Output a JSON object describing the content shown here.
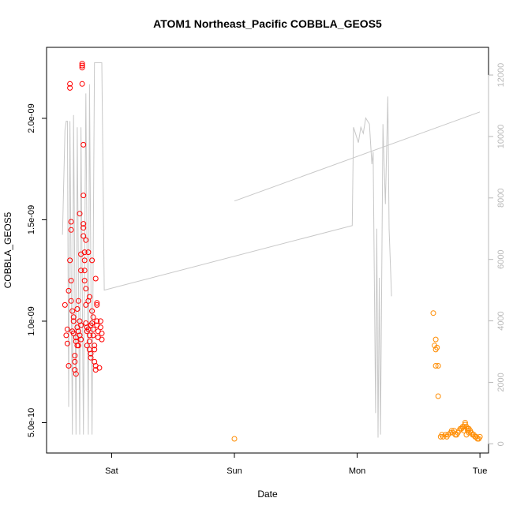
{
  "chart_data": {
    "type": "scatter",
    "title": "ATOM1 Northeast_Pacific COBBLA_GEOS5",
    "xlabel": "Date",
    "ylabel": "COBBLA_GEOS5",
    "x_ticks": [
      "Sat",
      "Sun",
      "Mon",
      "Tue"
    ],
    "xlim_days": [
      -0.53,
      3.07
    ],
    "y_ticks": [
      {
        "value": 5e-10,
        "label": "5.0e-10"
      },
      {
        "value": 1e-09,
        "label": "1.0e-09"
      },
      {
        "value": 1.5e-09,
        "label": "1.5e-09"
      },
      {
        "value": 2e-09,
        "label": "2.0e-09"
      }
    ],
    "ylim": [
      3.5e-10,
      2.35e-09
    ],
    "y2_ticks": [
      0,
      2000,
      4000,
      6000,
      8000,
      10000,
      12000
    ],
    "y2lim": [
      -300,
      12900
    ],
    "grid": false,
    "series": [
      {
        "color": "#ff0000",
        "marker": "open-circle",
        "points": [
          [
            -0.38,
            1.08e-09
          ],
          [
            -0.37,
            9.3e-10
          ],
          [
            -0.36,
            8.9e-10
          ],
          [
            -0.36,
            9.6e-10
          ],
          [
            -0.35,
            1.15e-09
          ],
          [
            -0.35,
            7.8e-10
          ],
          [
            -0.34,
            1.3e-09
          ],
          [
            -0.34,
            2.17e-09
          ],
          [
            -0.34,
            2.15e-09
          ],
          [
            -0.33,
            1.2e-09
          ],
          [
            -0.33,
            1.49e-09
          ],
          [
            -0.33,
            1.45e-09
          ],
          [
            -0.32,
            1.05e-09
          ],
          [
            -0.32,
            9.5e-10
          ],
          [
            -0.31,
            1e-09
          ],
          [
            -0.31,
            9.4e-10
          ],
          [
            -0.3,
            8.3e-10
          ],
          [
            -0.3,
            8e-10
          ],
          [
            -0.3,
            7.6e-10
          ],
          [
            -0.29,
            7.4e-10
          ],
          [
            -0.29,
            9.2e-10
          ],
          [
            -0.28,
            1.06e-09
          ],
          [
            -0.28,
            9.7e-10
          ],
          [
            -0.27,
            9.5e-10
          ],
          [
            -0.27,
            1.1e-09
          ],
          [
            -0.26,
            1.53e-09
          ],
          [
            -0.26,
            9.3e-10
          ],
          [
            -0.25,
            9.1e-10
          ],
          [
            -0.25,
            1.33e-09
          ],
          [
            -0.25,
            1.25e-09
          ],
          [
            -0.24,
            2.27e-09
          ],
          [
            -0.24,
            2.26e-09
          ],
          [
            -0.24,
            2.25e-09
          ],
          [
            -0.24,
            2.17e-09
          ],
          [
            -0.23,
            1.87e-09
          ],
          [
            -0.23,
            1.62e-09
          ],
          [
            -0.23,
            1.48e-09
          ],
          [
            -0.23,
            1.46e-09
          ],
          [
            -0.23,
            1.42e-09
          ],
          [
            -0.22,
            1.34e-09
          ],
          [
            -0.22,
            1.3e-09
          ],
          [
            -0.22,
            1.2e-09
          ],
          [
            -0.21,
            1.16e-09
          ],
          [
            -0.21,
            1.08e-09
          ],
          [
            -0.21,
            9.9e-10
          ],
          [
            -0.2,
            9.7e-10
          ],
          [
            -0.2,
            9.5e-10
          ],
          [
            -0.2,
            8.8e-10
          ],
          [
            -0.19,
            1.34e-09
          ],
          [
            -0.19,
            1.1e-09
          ],
          [
            -0.18,
            9.3e-10
          ],
          [
            -0.18,
            9e-10
          ],
          [
            -0.18,
            8.6e-10
          ],
          [
            -0.17,
            8.4e-10
          ],
          [
            -0.17,
            8.2e-10
          ],
          [
            -0.16,
            1.05e-09
          ],
          [
            -0.16,
            9.9e-10
          ],
          [
            -0.15,
            9.6e-10
          ],
          [
            -0.15,
            9.3e-10
          ],
          [
            -0.14,
            8.8e-10
          ],
          [
            -0.14,
            8e-10
          ],
          [
            -0.13,
            1.21e-09
          ],
          [
            -0.13,
            7.8e-10
          ],
          [
            -0.13,
            7.6e-10
          ],
          [
            -0.12,
            1.09e-09
          ],
          [
            -0.12,
            1.08e-09
          ],
          [
            -0.12,
            9.8e-10
          ],
          [
            -0.11,
            9.5e-10
          ],
          [
            -0.11,
            9.2e-10
          ],
          [
            -0.1,
            7.7e-10
          ],
          [
            -0.09,
            1e-09
          ],
          [
            -0.09,
            9.7e-10
          ],
          [
            -0.08,
            9.4e-10
          ],
          [
            -0.08,
            9.1e-10
          ],
          [
            -0.33,
            1.1e-09
          ],
          [
            -0.31,
            1.02e-09
          ],
          [
            -0.27,
            8.8e-10
          ],
          [
            -0.26,
            1e-09
          ],
          [
            -0.22,
            1.25e-09
          ],
          [
            -0.21,
            1.4e-09
          ],
          [
            -0.19,
            9.6e-10
          ],
          [
            -0.17,
            9.8e-10
          ],
          [
            -0.15,
            1.02e-09
          ],
          [
            -0.14,
            8.6e-10
          ],
          [
            -0.12,
            1e-09
          ],
          [
            -0.29,
            9e-10
          ],
          [
            -0.28,
            8.8e-10
          ],
          [
            -0.25,
            9.8e-10
          ],
          [
            -0.18,
            1.12e-09
          ],
          [
            -0.16,
            1.3e-09
          ]
        ]
      },
      {
        "color": "#ff8c00",
        "marker": "open-circle",
        "points": [
          [
            1.0,
            4.2e-10
          ],
          [
            2.62,
            1.04e-09
          ],
          [
            2.63,
            8.8e-10
          ],
          [
            2.64,
            9.1e-10
          ],
          [
            2.64,
            8.6e-10
          ],
          [
            2.65,
            8.7e-10
          ],
          [
            2.64,
            7.8e-10
          ],
          [
            2.66,
            7.8e-10
          ],
          [
            2.66,
            6.3e-10
          ],
          [
            2.68,
            4.3e-10
          ],
          [
            2.69,
            4.4e-10
          ],
          [
            2.7,
            4.3e-10
          ],
          [
            2.72,
            4.4e-10
          ],
          [
            2.73,
            4.3e-10
          ],
          [
            2.74,
            4.4e-10
          ],
          [
            2.76,
            4.5e-10
          ],
          [
            2.77,
            4.6e-10
          ],
          [
            2.78,
            4.5e-10
          ],
          [
            2.79,
            4.6e-10
          ],
          [
            2.8,
            4.4e-10
          ],
          [
            2.81,
            4.4e-10
          ],
          [
            2.82,
            4.5e-10
          ],
          [
            2.83,
            4.6e-10
          ],
          [
            2.84,
            4.7e-10
          ],
          [
            2.85,
            4.7e-10
          ],
          [
            2.86,
            4.8e-10
          ],
          [
            2.87,
            4.8e-10
          ],
          [
            2.88,
            4.9e-10
          ],
          [
            2.88,
            5e-10
          ],
          [
            2.89,
            4.8e-10
          ],
          [
            2.9,
            4.7e-10
          ],
          [
            2.9,
            4.6e-10
          ],
          [
            2.91,
            4.5e-10
          ],
          [
            2.92,
            4.6e-10
          ],
          [
            2.93,
            4.5e-10
          ],
          [
            2.94,
            4.4e-10
          ],
          [
            2.95,
            4.4e-10
          ],
          [
            2.96,
            4.3e-10
          ],
          [
            2.97,
            4.3e-10
          ],
          [
            2.98,
            4.2e-10
          ],
          [
            2.99,
            4.2e-10
          ],
          [
            3.0,
            4.3e-10
          ],
          [
            2.87,
            4.6e-10
          ],
          [
            2.89,
            4.4e-10
          ],
          [
            2.91,
            4.7e-10
          ]
        ]
      },
      {
        "color": "#c8c8c8",
        "type": "line",
        "axis": "right",
        "points": [
          [
            -0.4,
            6800
          ],
          [
            -0.38,
            10200
          ],
          [
            -0.37,
            10500
          ],
          [
            -0.36,
            10500
          ],
          [
            -0.35,
            1200
          ],
          [
            -0.34,
            10500
          ],
          [
            -0.32,
            300
          ],
          [
            -0.31,
            10700
          ],
          [
            -0.29,
            300
          ],
          [
            -0.28,
            10300
          ],
          [
            -0.26,
            300
          ],
          [
            -0.25,
            10300
          ],
          [
            -0.23,
            300
          ],
          [
            -0.21,
            11400
          ],
          [
            -0.19,
            300
          ],
          [
            -0.18,
            11700
          ],
          [
            -0.16,
            300
          ],
          [
            -0.14,
            12400
          ],
          [
            -0.12,
            12400
          ],
          [
            -0.1,
            12400
          ],
          [
            -0.08,
            12400
          ],
          [
            -0.06,
            5000
          ],
          [
            1.96,
            7100
          ],
          [
            1.97,
            10300
          ],
          [
            2.01,
            9800
          ],
          [
            2.03,
            10300
          ],
          [
            2.05,
            10100
          ],
          [
            2.07,
            10600
          ],
          [
            2.1,
            10400
          ],
          [
            2.12,
            9100
          ],
          [
            2.13,
            9500
          ],
          [
            2.15,
            1000
          ],
          [
            2.16,
            7000
          ],
          [
            2.17,
            200
          ],
          [
            2.18,
            5400
          ],
          [
            2.19,
            300
          ],
          [
            2.21,
            10400
          ],
          [
            2.23,
            7800
          ],
          [
            2.25,
            11300
          ],
          [
            2.26,
            7000
          ],
          [
            2.28,
            4800
          ]
        ]
      },
      {
        "color": "#c8c8c8",
        "type": "line",
        "axis": "right",
        "points": [
          [
            1.0,
            7900
          ],
          [
            3.0,
            10800
          ]
        ]
      }
    ]
  }
}
